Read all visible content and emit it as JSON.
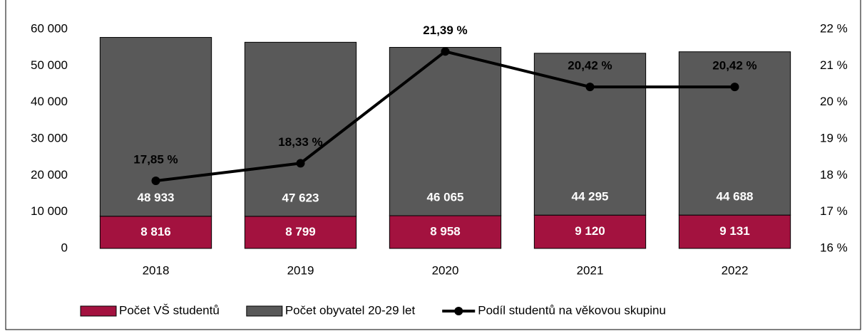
{
  "chart_data": {
    "type": "bar-line",
    "categories": [
      "2018",
      "2019",
      "2020",
      "2021",
      "2022"
    ],
    "series": [
      {
        "name": "Počet VŠ studentů",
        "color": "#a3123f",
        "values": [
          8816,
          8799,
          8958,
          9120,
          9131
        ],
        "value_labels": [
          "8 816",
          "8 799",
          "8 958",
          "9 120",
          "9 131"
        ]
      },
      {
        "name": "Počet obyvatel 20-29 let",
        "color": "#595959",
        "values": [
          48933,
          47623,
          46065,
          44295,
          44688
        ],
        "value_labels": [
          "48 933",
          "47 623",
          "46 065",
          "44 295",
          "44 688"
        ]
      },
      {
        "name": "Podíl studentů na věkovou skupinu",
        "color": "#000000",
        "axis": "y2",
        "values": [
          17.85,
          18.33,
          21.39,
          20.42,
          20.42
        ],
        "value_labels": [
          "17,85 %",
          "18,33 %",
          "21,39 %",
          "20,42 %",
          "20,42 %"
        ]
      }
    ],
    "ylim": [
      0,
      60000
    ],
    "yticks": [
      0,
      {
        "value": 10000,
        "label": "10 000"
      },
      {
        "value": 20000,
        "label": "20 000"
      },
      {
        "value": 30000,
        "label": "30 000"
      },
      {
        "value": 40000,
        "label": "40 000"
      },
      {
        "value": 50000,
        "label": "50 000"
      },
      {
        "value": 60000,
        "label": "60 000"
      }
    ],
    "y2lim": [
      16,
      22
    ],
    "y2ticks": [
      {
        "value": 16,
        "label": "16 %"
      },
      {
        "value": 17,
        "label": "17 %"
      },
      {
        "value": 18,
        "label": "18 %"
      },
      {
        "value": 19,
        "label": "19 %"
      },
      {
        "value": 20,
        "label": "20 %"
      },
      {
        "value": 21,
        "label": "21 %"
      },
      {
        "value": 22,
        "label": "22 %"
      }
    ],
    "legend": "bottom"
  }
}
